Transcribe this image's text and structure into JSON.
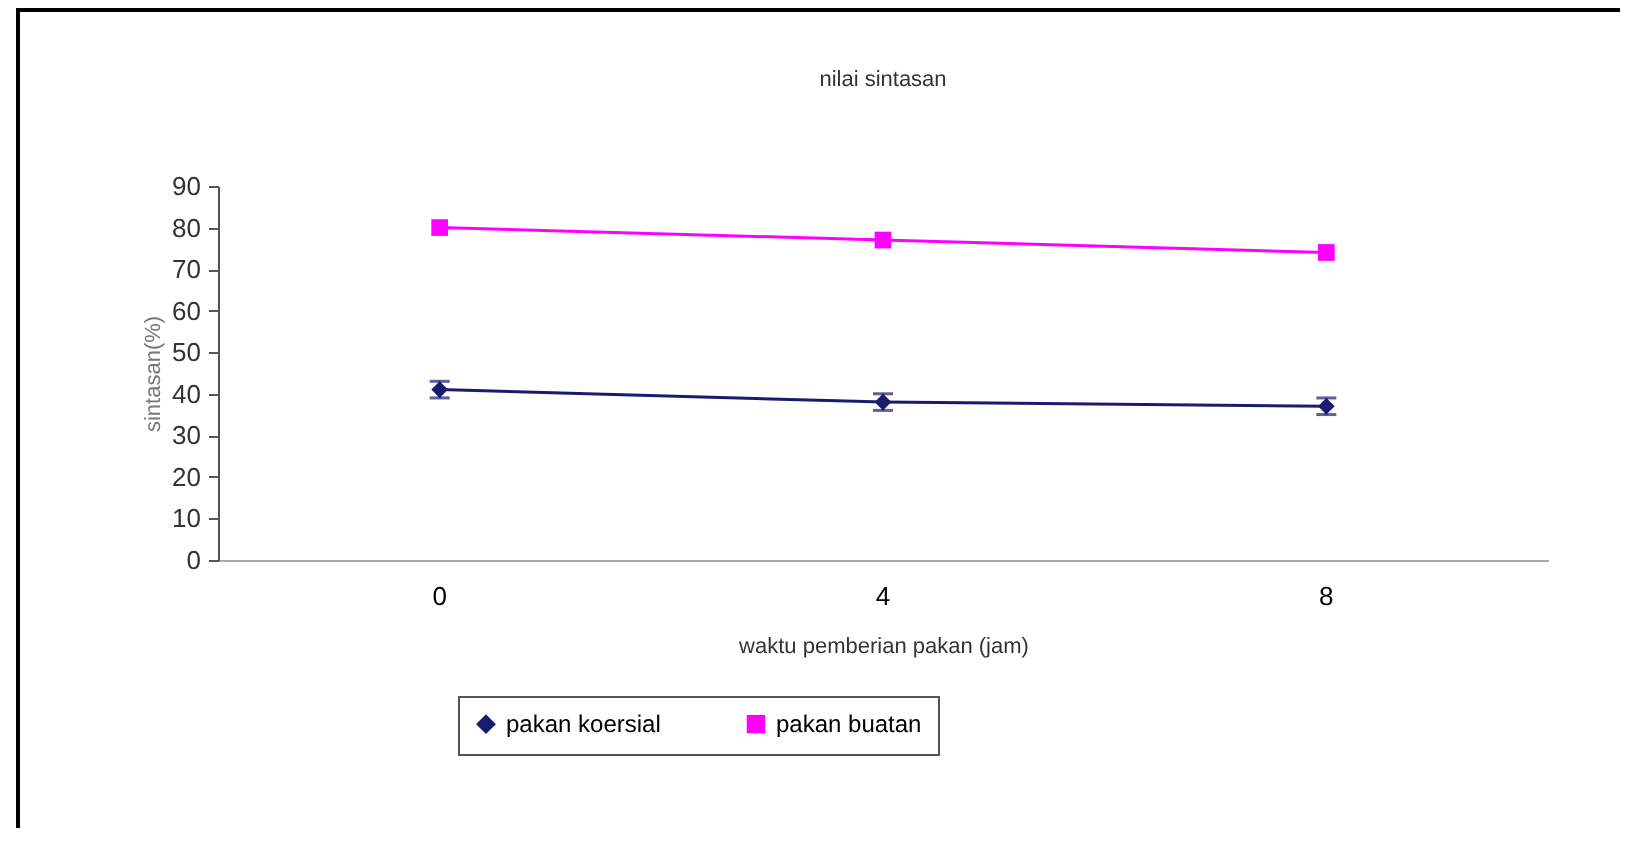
{
  "chart_data": {
    "type": "line",
    "title": "nilai sintasan",
    "xlabel": "waktu pemberian pakan (jam)",
    "ylabel": "sintasan(%)",
    "categories": [
      "0",
      "4",
      "8"
    ],
    "series": [
      {
        "name": "pakan koersial",
        "color": "#1a1a6e",
        "marker": "diamond",
        "values": [
          41,
          38,
          37
        ],
        "errors": [
          2,
          2,
          2
        ]
      },
      {
        "name": "pakan buatan",
        "color": "#ff00ff",
        "marker": "square",
        "values": [
          80,
          77,
          74
        ]
      }
    ],
    "ylim": [
      0,
      90
    ],
    "yticks": [
      0,
      10,
      20,
      30,
      40,
      50,
      60,
      70,
      80,
      90
    ],
    "grid": false,
    "legend": "bottom"
  }
}
